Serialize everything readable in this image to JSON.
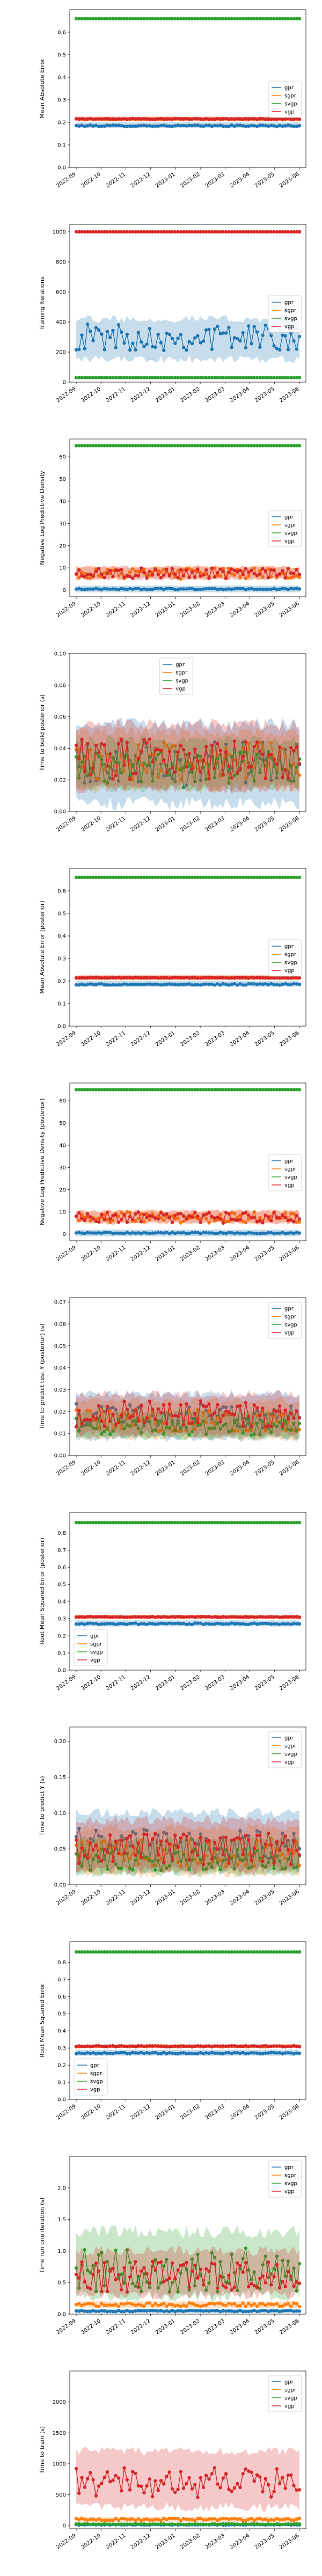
{
  "series_colors": {
    "gpr": "#1f77b4",
    "sgpr": "#ff7f0e",
    "svgp": "#2ca02c",
    "vgp": "#d62728"
  },
  "chart_data": [
    {
      "type": "line",
      "ylabel": "Mean Absolute Error",
      "xlabel": "",
      "ylim": [
        0,
        0.7
      ],
      "yticks": [
        0.0,
        0.1,
        0.2,
        0.3,
        0.4,
        0.5,
        0.6
      ],
      "ytick_labels": [
        "0.0",
        "0.1",
        "0.2",
        "0.3",
        "0.4",
        "0.5",
        "0.6"
      ],
      "x_tick_labels": [
        "2022-09",
        "2022-10",
        "2022-11",
        "2022-12",
        "2023-01",
        "2023-02",
        "2023-03",
        "2023-04",
        "2023-05",
        "2023-06"
      ],
      "legend_position": "center-right",
      "grid": false,
      "series": [
        {
          "name": "gpr",
          "mean": 0.185,
          "low": 0.175,
          "high": 0.2,
          "jitter": 0.003
        },
        {
          "name": "sgpr",
          "mean": 0.215,
          "low": 0.205,
          "high": 0.225,
          "jitter": 0.002
        },
        {
          "name": "svgp",
          "mean": 0.66,
          "low": 0.66,
          "high": 0.66,
          "jitter": 0
        },
        {
          "name": "vgp",
          "mean": 0.215,
          "low": 0.205,
          "high": 0.225,
          "jitter": 0.002
        }
      ]
    },
    {
      "type": "line",
      "ylabel": "Training Iterations",
      "xlabel": "",
      "ylim": [
        0,
        1050
      ],
      "yticks": [
        0,
        200,
        400,
        600,
        800,
        1000
      ],
      "ytick_labels": [
        "0",
        "200",
        "400",
        "600",
        "800",
        "1000"
      ],
      "x_tick_labels": [
        "2022-09",
        "2022-10",
        "2022-11",
        "2022-12",
        "2023-01",
        "2023-02",
        "2023-03",
        "2023-04",
        "2023-05",
        "2023-06"
      ],
      "legend_position": "center-right",
      "grid": false,
      "series": [
        {
          "name": "gpr",
          "mean": 300,
          "low": 150,
          "high": 420,
          "jitter": 90
        },
        {
          "name": "sgpr",
          "mean": 1000,
          "low": 1000,
          "high": 1000,
          "jitter": 0
        },
        {
          "name": "svgp",
          "mean": 30,
          "low": 30,
          "high": 30,
          "jitter": 0
        },
        {
          "name": "vgp",
          "mean": 1000,
          "low": 1000,
          "high": 1000,
          "jitter": 0
        }
      ]
    },
    {
      "type": "line",
      "ylabel": "Negative Log Predictive Density",
      "xlabel": "",
      "ylim": [
        -3,
        68
      ],
      "yticks": [
        0,
        10,
        20,
        30,
        40,
        50,
        60
      ],
      "ytick_labels": [
        "0",
        "10",
        "20",
        "30",
        "40",
        "50",
        "60"
      ],
      "x_tick_labels": [
        "2022-09",
        "2022-10",
        "2022-11",
        "2022-12",
        "2023-01",
        "2023-02",
        "2023-03",
        "2023-04",
        "2023-05",
        "2023-06"
      ],
      "legend_position": "center-right",
      "grid": false,
      "series": [
        {
          "name": "gpr",
          "mean": 0.5,
          "low": -1,
          "high": 2,
          "jitter": 0.3
        },
        {
          "name": "sgpr",
          "mean": 7.5,
          "low": 5,
          "high": 10.5,
          "jitter": 2.5
        },
        {
          "name": "svgp",
          "mean": 65,
          "low": 65,
          "high": 65,
          "jitter": 0
        },
        {
          "name": "vgp",
          "mean": 7.5,
          "low": 5,
          "high": 10.5,
          "jitter": 2.5
        }
      ]
    },
    {
      "type": "line",
      "ylabel": "Time to build posterior (s)",
      "xlabel": "",
      "ylim": [
        0,
        0.1
      ],
      "yticks": [
        0.0,
        0.02,
        0.04,
        0.06,
        0.08,
        0.1
      ],
      "ytick_labels": [
        "0.00",
        "0.02",
        "0.04",
        "0.06",
        "0.08",
        "0.10"
      ],
      "x_tick_labels": [
        "2022-09",
        "2022-10",
        "2022-11",
        "2022-12",
        "2023-01",
        "2023-02",
        "2023-03",
        "2023-04",
        "2023-05",
        "2023-06"
      ],
      "legend_position": "top-center",
      "grid": false,
      "series": [
        {
          "name": "gpr",
          "mean": 0.03,
          "low": 0.005,
          "high": 0.055,
          "jitter": 0.015
        },
        {
          "name": "sgpr",
          "mean": 0.032,
          "low": 0.015,
          "high": 0.05,
          "jitter": 0.012
        },
        {
          "name": "svgp",
          "mean": 0.028,
          "low": 0.015,
          "high": 0.045,
          "jitter": 0.01
        },
        {
          "name": "vgp",
          "mean": 0.033,
          "low": 0.015,
          "high": 0.055,
          "jitter": 0.013
        }
      ]
    },
    {
      "type": "line",
      "ylabel": "Mean Absolute Error (posterior)",
      "xlabel": "",
      "ylim": [
        0,
        0.7
      ],
      "yticks": [
        0.0,
        0.1,
        0.2,
        0.3,
        0.4,
        0.5,
        0.6
      ],
      "ytick_labels": [
        "0.0",
        "0.1",
        "0.2",
        "0.3",
        "0.4",
        "0.5",
        "0.6"
      ],
      "x_tick_labels": [
        "2022-09",
        "2022-10",
        "2022-11",
        "2022-12",
        "2023-01",
        "2023-02",
        "2023-03",
        "2023-04",
        "2023-05",
        "2023-06"
      ],
      "legend_position": "center-right",
      "grid": false,
      "series": [
        {
          "name": "gpr",
          "mean": 0.185,
          "low": 0.175,
          "high": 0.2,
          "jitter": 0.003
        },
        {
          "name": "sgpr",
          "mean": 0.215,
          "low": 0.205,
          "high": 0.225,
          "jitter": 0.002
        },
        {
          "name": "svgp",
          "mean": 0.66,
          "low": 0.66,
          "high": 0.66,
          "jitter": 0
        },
        {
          "name": "vgp",
          "mean": 0.215,
          "low": 0.205,
          "high": 0.225,
          "jitter": 0.002
        }
      ]
    },
    {
      "type": "line",
      "ylabel": "Negative Log Predictive Density (posterior)",
      "xlabel": "",
      "ylim": [
        -3,
        68
      ],
      "yticks": [
        0,
        10,
        20,
        30,
        40,
        50,
        60
      ],
      "ytick_labels": [
        "0",
        "10",
        "20",
        "30",
        "40",
        "50",
        "60"
      ],
      "x_tick_labels": [
        "2022-09",
        "2022-10",
        "2022-11",
        "2022-12",
        "2023-01",
        "2023-02",
        "2023-03",
        "2023-04",
        "2023-05",
        "2023-06"
      ],
      "legend_position": "center-right",
      "grid": false,
      "series": [
        {
          "name": "gpr",
          "mean": 0.5,
          "low": -1,
          "high": 2,
          "jitter": 0.3
        },
        {
          "name": "sgpr",
          "mean": 7.5,
          "low": 5,
          "high": 10.5,
          "jitter": 2.5
        },
        {
          "name": "svgp",
          "mean": 65,
          "low": 65,
          "high": 65,
          "jitter": 0
        },
        {
          "name": "vgp",
          "mean": 7.5,
          "low": 5,
          "high": 10.5,
          "jitter": 2.5
        }
      ]
    },
    {
      "type": "line",
      "ylabel": "Time to predict test Y (posterior) (s)",
      "xlabel": "",
      "ylim": [
        0,
        0.072
      ],
      "yticks": [
        0.0,
        0.01,
        0.02,
        0.03,
        0.04,
        0.05,
        0.06,
        0.07
      ],
      "ytick_labels": [
        "0.00",
        "0.01",
        "0.02",
        "0.03",
        "0.04",
        "0.05",
        "0.06",
        "0.07"
      ],
      "x_tick_labels": [
        "2022-09",
        "2022-10",
        "2022-11",
        "2022-12",
        "2023-01",
        "2023-02",
        "2023-03",
        "2023-04",
        "2023-05",
        "2023-06"
      ],
      "legend_position": "top-right",
      "grid": false,
      "series": [
        {
          "name": "gpr",
          "mean": 0.018,
          "low": 0.008,
          "high": 0.028,
          "jitter": 0.006
        },
        {
          "name": "sgpr",
          "mean": 0.016,
          "low": 0.008,
          "high": 0.025,
          "jitter": 0.005
        },
        {
          "name": "svgp",
          "mean": 0.013,
          "low": 0.008,
          "high": 0.02,
          "jitter": 0.004
        },
        {
          "name": "vgp",
          "mean": 0.019,
          "low": 0.01,
          "high": 0.028,
          "jitter": 0.006
        }
      ]
    },
    {
      "type": "line",
      "ylabel": "Root Mean Squared Error (posterior)",
      "xlabel": "",
      "ylim": [
        0,
        0.92
      ],
      "yticks": [
        0.0,
        0.1,
        0.2,
        0.3,
        0.4,
        0.5,
        0.6,
        0.7,
        0.8
      ],
      "ytick_labels": [
        "0.0",
        "0.1",
        "0.2",
        "0.3",
        "0.4",
        "0.5",
        "0.6",
        "0.7",
        "0.8"
      ],
      "x_tick_labels": [
        "2022-09",
        "2022-10",
        "2022-11",
        "2022-12",
        "2023-01",
        "2023-02",
        "2023-03",
        "2023-04",
        "2023-05",
        "2023-06"
      ],
      "legend_position": "bottom-left",
      "grid": false,
      "series": [
        {
          "name": "gpr",
          "mean": 0.27,
          "low": 0.255,
          "high": 0.29,
          "jitter": 0.004
        },
        {
          "name": "sgpr",
          "mean": 0.31,
          "low": 0.3,
          "high": 0.32,
          "jitter": 0.003
        },
        {
          "name": "svgp",
          "mean": 0.86,
          "low": 0.86,
          "high": 0.86,
          "jitter": 0
        },
        {
          "name": "vgp",
          "mean": 0.31,
          "low": 0.3,
          "high": 0.32,
          "jitter": 0.003
        }
      ]
    },
    {
      "type": "line",
      "ylabel": "Time to predict Y (s)",
      "xlabel": "",
      "ylim": [
        0,
        0.22
      ],
      "yticks": [
        0.0,
        0.05,
        0.1,
        0.15,
        0.2
      ],
      "ytick_labels": [
        "0.00",
        "0.05",
        "0.10",
        "0.15",
        "0.20"
      ],
      "x_tick_labels": [
        "2022-09",
        "2022-10",
        "2022-11",
        "2022-12",
        "2023-01",
        "2023-02",
        "2023-03",
        "2023-04",
        "2023-05",
        "2023-06"
      ],
      "legend_position": "top-right",
      "grid": false,
      "series": [
        {
          "name": "gpr",
          "mean": 0.055,
          "low": 0.02,
          "high": 0.1,
          "jitter": 0.025
        },
        {
          "name": "sgpr",
          "mean": 0.045,
          "low": 0.015,
          "high": 0.08,
          "jitter": 0.02
        },
        {
          "name": "svgp",
          "mean": 0.035,
          "low": 0.015,
          "high": 0.065,
          "jitter": 0.015
        },
        {
          "name": "vgp",
          "mean": 0.05,
          "low": 0.02,
          "high": 0.09,
          "jitter": 0.022
        }
      ]
    },
    {
      "type": "line",
      "ylabel": "Root Mean Squared Error",
      "xlabel": "",
      "ylim": [
        0,
        0.92
      ],
      "yticks": [
        0.0,
        0.1,
        0.2,
        0.3,
        0.4,
        0.5,
        0.6,
        0.7,
        0.8
      ],
      "ytick_labels": [
        "0.0",
        "0.1",
        "0.2",
        "0.3",
        "0.4",
        "0.5",
        "0.6",
        "0.7",
        "0.8"
      ],
      "x_tick_labels": [
        "2022-09",
        "2022-10",
        "2022-11",
        "2022-12",
        "2023-01",
        "2023-02",
        "2023-03",
        "2023-04",
        "2023-05",
        "2023-06"
      ],
      "legend_position": "bottom-left",
      "grid": false,
      "series": [
        {
          "name": "gpr",
          "mean": 0.27,
          "low": 0.255,
          "high": 0.29,
          "jitter": 0.004
        },
        {
          "name": "sgpr",
          "mean": 0.31,
          "low": 0.3,
          "high": 0.32,
          "jitter": 0.003
        },
        {
          "name": "svgp",
          "mean": 0.86,
          "low": 0.86,
          "high": 0.86,
          "jitter": 0
        },
        {
          "name": "vgp",
          "mean": 0.31,
          "low": 0.3,
          "high": 0.32,
          "jitter": 0.003
        }
      ]
    },
    {
      "type": "line",
      "ylabel": "Time run one iteration (s)",
      "xlabel": "",
      "ylim": [
        0,
        2.5
      ],
      "yticks": [
        0.0,
        0.5,
        1.0,
        1.5,
        2.0
      ],
      "ytick_labels": [
        "0.0",
        "0.5",
        "1.0",
        "1.5",
        "2.0"
      ],
      "x_tick_labels": [
        "2022-09",
        "2022-10",
        "2022-11",
        "2022-12",
        "2023-01",
        "2023-02",
        "2023-03",
        "2023-04",
        "2023-05",
        "2023-06"
      ],
      "legend_position": "top-right",
      "grid": false,
      "series": [
        {
          "name": "gpr",
          "mean": 0.05,
          "low": 0.02,
          "high": 0.08,
          "jitter": 0.01
        },
        {
          "name": "sgpr",
          "mean": 0.15,
          "low": 0.1,
          "high": 0.2,
          "jitter": 0.03
        },
        {
          "name": "svgp",
          "mean": 0.7,
          "low": 0.3,
          "high": 1.3,
          "jitter": 0.35
        },
        {
          "name": "vgp",
          "mean": 0.6,
          "low": 0.3,
          "high": 1.0,
          "jitter": 0.25
        }
      ]
    },
    {
      "type": "line",
      "ylabel": "Time to train (s)",
      "xlabel": "",
      "ylim": [
        -50,
        2500
      ],
      "yticks": [
        0,
        500,
        1000,
        1500,
        2000
      ],
      "ytick_labels": [
        "0",
        "500",
        "1000",
        "1500",
        "2000"
      ],
      "x_tick_labels": [
        "2022-09",
        "2022-10",
        "2022-11",
        "2022-12",
        "2023-01",
        "2023-02",
        "2023-03",
        "2023-04",
        "2023-05",
        "2023-06"
      ],
      "legend_position": "top-right",
      "grid": false,
      "series": [
        {
          "name": "gpr",
          "mean": 15,
          "low": 5,
          "high": 25,
          "jitter": 5
        },
        {
          "name": "sgpr",
          "mean": 100,
          "low": 60,
          "high": 140,
          "jitter": 20
        },
        {
          "name": "svgp",
          "mean": 25,
          "low": 15,
          "high": 35,
          "jitter": 5
        },
        {
          "name": "vgp",
          "mean": 700,
          "low": 300,
          "high": 1200,
          "jitter": 250
        }
      ]
    }
  ]
}
